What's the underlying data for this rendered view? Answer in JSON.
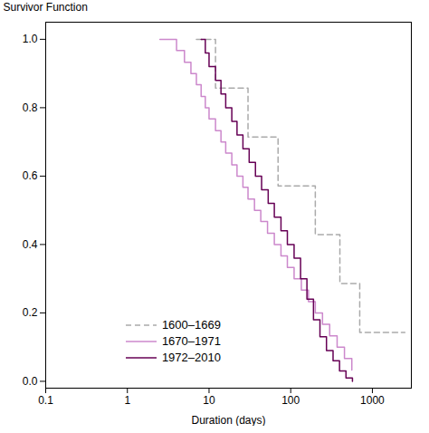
{
  "chart_data": {
    "type": "step",
    "xlabel": "Duration (days)",
    "ylabel": "Survivor Function",
    "log": "x",
    "grid": false,
    "legend": "lower left",
    "xlim": [
      0.1,
      3000
    ],
    "ylim": [
      -0.02,
      1.05
    ],
    "xticks": [
      0.1,
      1,
      10,
      100,
      1000
    ],
    "yticks": [
      {
        "value": 0.0,
        "label": "0.0"
      },
      0.2,
      0.4,
      0.6,
      0.8,
      {
        "value": 1.0,
        "label": "1.0"
      }
    ],
    "series": [
      {
        "name": "1600–1669",
        "color": "#aaaaaa",
        "line_style": "dashed",
        "x": [
          7,
          12,
          30,
          70,
          200,
          400,
          700,
          2500
        ],
        "values": [
          1.0,
          0.857,
          0.714,
          0.571,
          0.429,
          0.286,
          0.143,
          0.143
        ]
      },
      {
        "name": "1670–1971",
        "color": "#cc88cc",
        "line_style": "solid",
        "x": [
          2.5,
          4,
          5,
          6,
          7,
          8,
          9,
          10,
          12,
          14,
          16,
          19,
          22,
          26,
          30,
          36,
          43,
          52,
          63,
          76,
          91,
          110,
          135,
          165,
          200,
          245,
          300,
          370,
          455,
          560
        ],
        "values": [
          1.0,
          0.967,
          0.933,
          0.9,
          0.867,
          0.833,
          0.8,
          0.767,
          0.733,
          0.7,
          0.667,
          0.633,
          0.6,
          0.567,
          0.533,
          0.5,
          0.467,
          0.433,
          0.4,
          0.367,
          0.333,
          0.3,
          0.267,
          0.233,
          0.2,
          0.167,
          0.133,
          0.1,
          0.067,
          0.033
        ]
      },
      {
        "name": "1972–2010",
        "color": "#660055",
        "line_style": "solid",
        "x": [
          8,
          9,
          10,
          12,
          14,
          16,
          19,
          22,
          26,
          31,
          37,
          44,
          53,
          63,
          76,
          91,
          110,
          132,
          158,
          190,
          228,
          274,
          330,
          396,
          475,
          570
        ],
        "values": [
          1.0,
          0.96,
          0.92,
          0.88,
          0.84,
          0.8,
          0.76,
          0.72,
          0.68,
          0.64,
          0.6,
          0.56,
          0.52,
          0.48,
          0.44,
          0.4,
          0.36,
          0.3,
          0.24,
          0.18,
          0.13,
          0.09,
          0.06,
          0.03,
          0.01,
          0.0
        ]
      }
    ]
  }
}
